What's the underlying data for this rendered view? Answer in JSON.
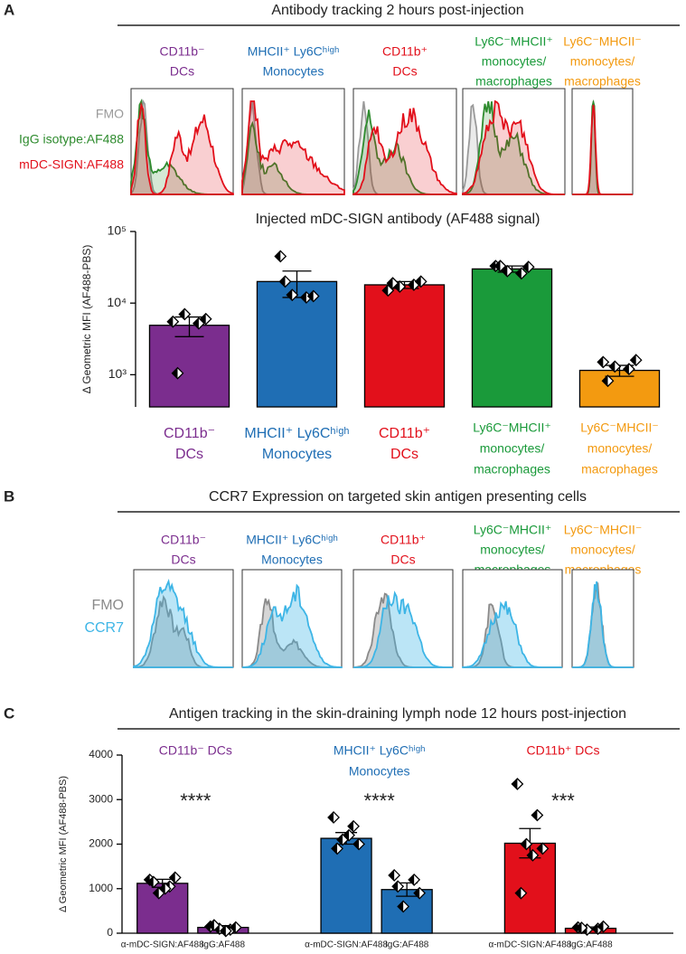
{
  "chart_data": [
    {
      "type": "histogram-panel",
      "panel": "A",
      "title": "Antibody tracking 2 hours post-injection",
      "populations": [
        {
          "label": [
            "CD11b⁻",
            "DCs"
          ],
          "color": "#7b2d8e"
        },
        {
          "label": [
            "MHCII⁺ Ly6Cʰⁱᵍʰ",
            "Monocytes"
          ],
          "color": "#1f6eb4"
        },
        {
          "label": [
            "CD11b⁺",
            "DCs"
          ],
          "color": "#e2101b"
        },
        {
          "label": [
            "Ly6C⁻MHCII⁺",
            "monocytes/",
            "macrophages"
          ],
          "color": "#1a9a3a"
        },
        {
          "label": [
            "Ly6C⁻MHCII⁻",
            "monocytes/",
            "macrophages"
          ],
          "color": "#f39a10"
        }
      ],
      "series": [
        {
          "name": "FMO",
          "color": "#9a9a9a"
        },
        {
          "name": "IgG isotype:AF488",
          "color": "#2e8b2e"
        },
        {
          "name": "mDC-SIGN:AF488",
          "color": "#e2101b"
        }
      ]
    },
    {
      "type": "bar",
      "title": "Injected mDC-SIGN antibody (AF488 signal)",
      "ylabel": "Δ Geometric MFI (AF488-PBS)",
      "categories": [
        [
          "CD11b⁻",
          "DCs"
        ],
        [
          "MHCII⁺ Ly6Cʰⁱᵍʰ",
          "Monocytes"
        ],
        [
          "CD11b⁺",
          "DCs"
        ],
        [
          "Ly6C⁻MHCII⁺",
          "monocytes/",
          "macrophages"
        ],
        [
          "Ly6C⁻MHCII⁻",
          "monocytes/",
          "macrophages"
        ]
      ],
      "colors": [
        "#7b2d8e",
        "#1f6eb4",
        "#e2101b",
        "#1a9a3a",
        "#f39a10"
      ],
      "values": [
        4900,
        20000,
        18000,
        30000,
        1150
      ],
      "errors": [
        1500,
        8000,
        2000,
        3000,
        200
      ],
      "points": [
        [
          5500,
          5200,
          7000,
          6000,
          1050
        ],
        [
          45000,
          12000,
          13000,
          12500,
          20000
        ],
        [
          15000,
          18000,
          17000,
          20000,
          19000
        ],
        [
          33000,
          26000,
          28000,
          32000,
          33000
        ],
        [
          1500,
          1200,
          1300,
          1600,
          820
        ]
      ],
      "log_scale": true,
      "ylim": [
        355,
        100000
      ],
      "yticks": [
        {
          "value": 1000,
          "label": "10³"
        },
        {
          "value": 10000,
          "label": "10⁴"
        },
        {
          "value": 100000,
          "label": "10⁵"
        }
      ]
    },
    {
      "type": "histogram-panel",
      "panel": "B",
      "title": "CCR7 Expression on targeted skin antigen presenting cells",
      "populations": [
        {
          "label": [
            "CD11b⁻",
            "DCs"
          ],
          "color": "#7b2d8e"
        },
        {
          "label": [
            "MHCII⁺ Ly6Cʰⁱᵍʰ",
            "Monocytes"
          ],
          "color": "#1f6eb4"
        },
        {
          "label": [
            "CD11b⁺",
            "DCs"
          ],
          "color": "#e2101b"
        },
        {
          "label": [
            "Ly6C⁻MHCII⁺",
            "monocytes/",
            "macrophages"
          ],
          "color": "#1a9a3a"
        },
        {
          "label": [
            "Ly6C⁻MHCII⁻",
            "monocytes/",
            "macrophages"
          ],
          "color": "#f39a10"
        }
      ],
      "series": [
        {
          "name": "FMO",
          "color": "#8a8a8a"
        },
        {
          "name": "CCR7",
          "color": "#3db5e6"
        }
      ]
    },
    {
      "type": "grouped-bar",
      "panel": "C",
      "title": "Antigen tracking in the skin-draining lymph node 12 hours post-injection",
      "ylabel": "Δ Geometric MFI (AF488-PBS)",
      "groups": [
        {
          "label": [
            "CD11b⁻ DCs"
          ],
          "color": "#7b2d8e",
          "significance": "****"
        },
        {
          "label": [
            "MHCII⁺ Ly6Cʰⁱᵍʰ",
            "Monocytes"
          ],
          "color": "#1f6eb4",
          "significance": "****"
        },
        {
          "label": [
            "CD11b⁺ DCs"
          ],
          "color": "#e2101b",
          "significance": "***"
        }
      ],
      "categories": [
        "α-mDC-SIGN:AF488",
        "IgG:AF488",
        "α-mDC-SIGN:AF488",
        "IgG:AF488",
        "α-mDC-SIGN:AF488",
        "IgG:AF488"
      ],
      "values": [
        1120,
        130,
        2130,
        980,
        2020,
        110
      ],
      "errors": [
        90,
        40,
        130,
        150,
        330,
        30
      ],
      "points": [
        [
          1200,
          1050,
          900,
          1250,
          1150,
          1000
        ],
        [
          150,
          80,
          100,
          130,
          180,
          50
        ],
        [
          2600,
          2400,
          2100,
          2000,
          1900,
          2200
        ],
        [
          1300,
          1200,
          600,
          900,
          1050
        ],
        [
          3350,
          2650,
          2000,
          1900,
          900,
          1750
        ],
        [
          130,
          100,
          80,
          150,
          120
        ]
      ],
      "ylim": [
        0,
        4000
      ],
      "yticks": [
        0,
        1000,
        2000,
        3000,
        4000
      ]
    }
  ]
}
